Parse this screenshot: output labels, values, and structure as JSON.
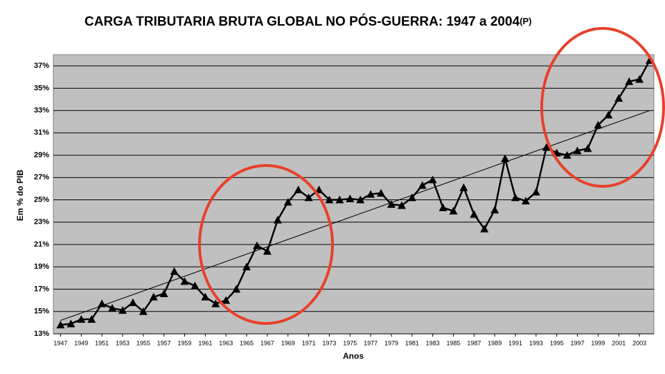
{
  "chart_data": {
    "type": "line",
    "title": "CARGA TRIBUTARIA BRUTA GLOBAL NO PÓS-GUERRA: 1947 a 2004",
    "title_note": "(P)",
    "x_label": "Anos",
    "y_label": "Em % do PIB",
    "x": [
      1947,
      1948,
      1949,
      1950,
      1951,
      1952,
      1953,
      1954,
      1955,
      1956,
      1957,
      1958,
      1959,
      1960,
      1961,
      1962,
      1963,
      1964,
      1965,
      1966,
      1967,
      1968,
      1969,
      1970,
      1971,
      1972,
      1973,
      1974,
      1975,
      1976,
      1977,
      1978,
      1979,
      1980,
      1981,
      1982,
      1983,
      1984,
      1985,
      1986,
      1987,
      1988,
      1989,
      1990,
      1991,
      1992,
      1993,
      1994,
      1995,
      1996,
      1997,
      1998,
      1999,
      2000,
      2001,
      2002,
      2003,
      2004
    ],
    "series": [
      {
        "color": "#000000",
        "values": [
          13.8,
          13.9,
          14.3,
          14.3,
          15.7,
          15.3,
          15.1,
          15.8,
          15.0,
          16.3,
          16.6,
          18.6,
          17.7,
          17.3,
          16.3,
          15.7,
          16.0,
          17.0,
          19.0,
          20.9,
          20.4,
          23.2,
          24.8,
          25.9,
          25.2,
          25.9,
          25.0,
          25.0,
          25.1,
          25.0,
          25.5,
          25.6,
          24.6,
          24.5,
          25.2,
          26.3,
          26.8,
          24.3,
          24.0,
          26.1,
          23.7,
          22.4,
          24.1,
          28.7,
          25.2,
          24.9,
          25.7,
          29.7,
          29.2,
          29.0,
          29.4,
          29.6,
          31.7,
          32.6,
          34.1,
          35.6,
          35.8,
          37.5
        ]
      }
    ],
    "trend": {
      "x": [
        1947,
        2004
      ],
      "values": [
        14.2,
        33.0
      ],
      "color": "#000000"
    },
    "xlim": [
      1946.3,
      2004.4
    ],
    "xticks": [
      1947,
      1949,
      1951,
      1953,
      1955,
      1957,
      1959,
      1961,
      1963,
      1965,
      1967,
      1969,
      1971,
      1973,
      1975,
      1977,
      1979,
      1981,
      1983,
      1985,
      1987,
      1989,
      1991,
      1993,
      1995,
      1997,
      1999,
      2001,
      2003
    ],
    "ylim": [
      13,
      38
    ],
    "yticks": [
      {
        "value": 13,
        "label": "13%"
      },
      {
        "value": 15,
        "label": "15%"
      },
      {
        "value": 17,
        "label": "17%"
      },
      {
        "value": 19,
        "label": "19%"
      },
      {
        "value": 21,
        "label": "21%"
      },
      {
        "value": 23,
        "label": "23%"
      },
      {
        "value": 25,
        "label": "25%"
      },
      {
        "value": 27,
        "label": "27%"
      },
      {
        "value": 29,
        "label": "29%"
      },
      {
        "value": 31,
        "label": "31%"
      },
      {
        "value": 33,
        "label": "33%"
      },
      {
        "value": 35,
        "label": "35%"
      },
      {
        "value": 37,
        "label": "37%"
      }
    ],
    "grid": true,
    "background": "#c0c0c0"
  }
}
